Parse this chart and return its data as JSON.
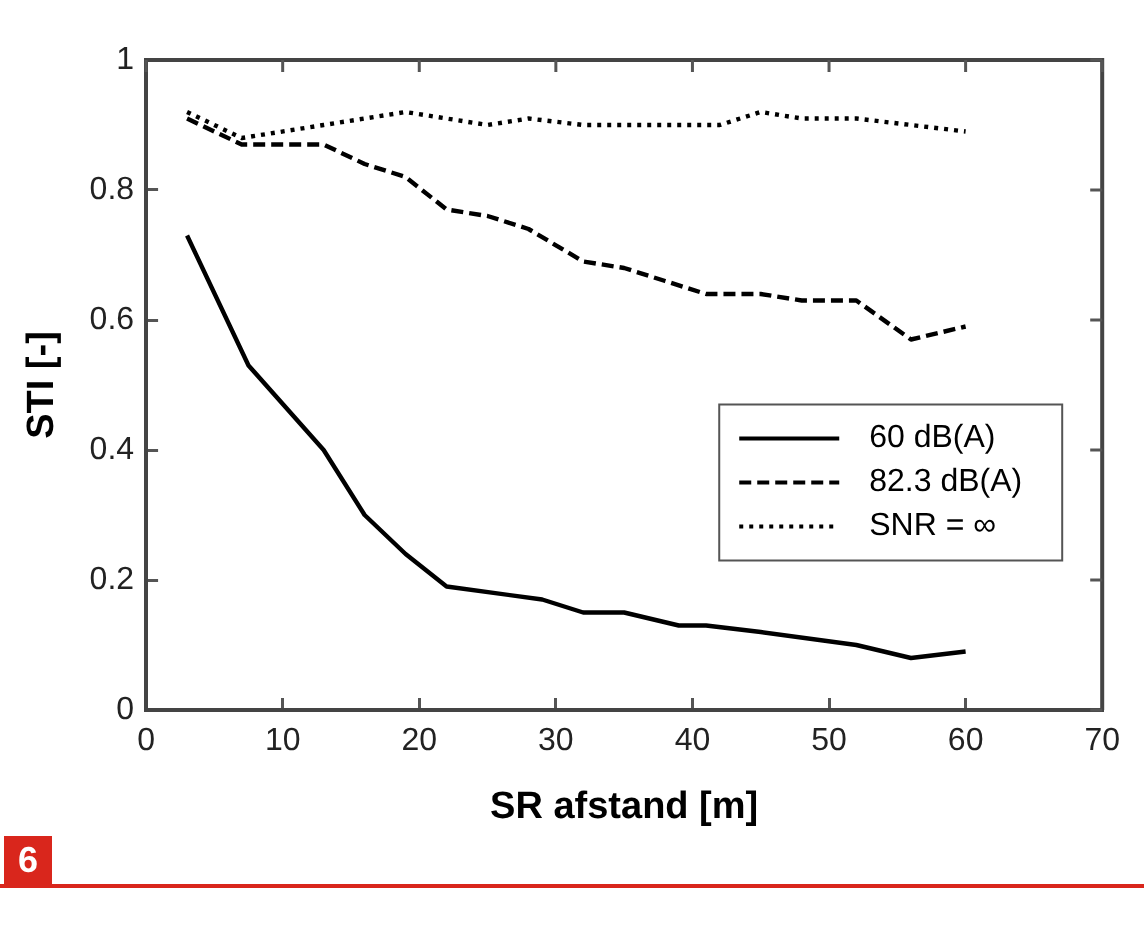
{
  "chart_data": {
    "type": "line",
    "xlabel": "SR afstand [m]",
    "ylabel": "STI [-]",
    "xlim": [
      0,
      70
    ],
    "xticks": [
      0,
      10,
      20,
      30,
      40,
      50,
      60,
      70
    ],
    "ylim": [
      0,
      1
    ],
    "yticks": [
      0,
      0.2,
      0.4,
      0.6,
      0.8,
      1
    ],
    "grid": false,
    "legend": "right",
    "marker": "none",
    "annotations": [
      "6"
    ],
    "series": [
      {
        "name": "60 dB(A)",
        "color": "#000000",
        "line_style": "solid",
        "x": [
          3,
          7.5,
          13,
          16,
          19,
          22,
          29,
          32,
          35,
          39,
          41,
          45,
          52,
          56,
          60
        ],
        "values": [
          0.73,
          0.53,
          0.4,
          0.3,
          0.24,
          0.19,
          0.17,
          0.15,
          0.15,
          0.13,
          0.13,
          0.12,
          0.1,
          0.08,
          0.09
        ]
      },
      {
        "name": "82.3 dB(A)",
        "color": "#000000",
        "line_style": "dashed",
        "x": [
          3,
          7,
          13,
          16,
          19,
          22,
          25,
          28,
          32,
          35,
          38,
          41,
          45,
          48,
          52,
          56,
          60
        ],
        "values": [
          0.91,
          0.87,
          0.87,
          0.84,
          0.82,
          0.77,
          0.76,
          0.74,
          0.69,
          0.68,
          0.66,
          0.64,
          0.64,
          0.63,
          0.63,
          0.57,
          0.59
        ]
      },
      {
        "name": "SNR = ∞",
        "color": "#000000",
        "line_style": "dotted",
        "x": [
          3,
          7,
          13,
          19,
          25,
          28,
          32,
          38,
          42,
          45,
          48,
          52,
          56,
          60
        ],
        "values": [
          0.92,
          0.88,
          0.9,
          0.92,
          0.9,
          0.91,
          0.9,
          0.9,
          0.9,
          0.92,
          0.91,
          0.91,
          0.9,
          0.89
        ]
      }
    ]
  }
}
